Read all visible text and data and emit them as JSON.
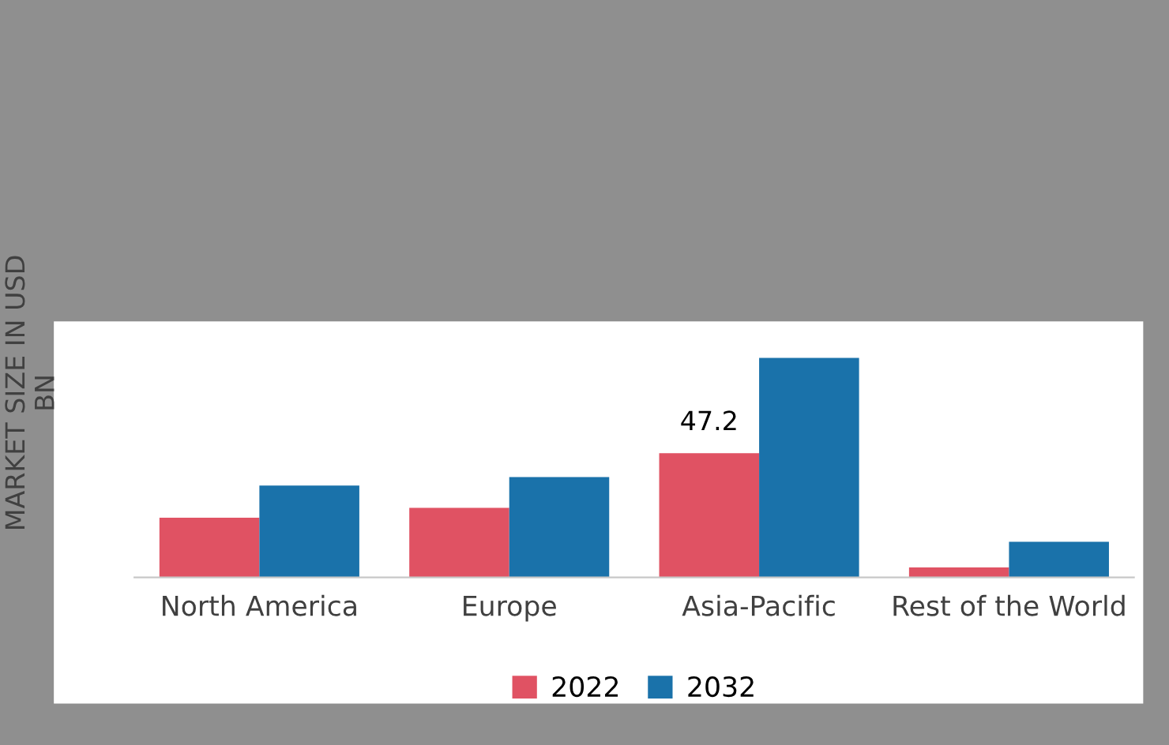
{
  "chart_data": {
    "type": "bar",
    "ylabel": "MARKET SIZE IN USD\nBN",
    "categories": [
      "North America",
      "Europe",
      "Asia-Pacific",
      "Rest of the World"
    ],
    "series": [
      {
        "name": "2022",
        "color": "#e05263",
        "values": [
          22.7,
          26.4,
          47.2,
          3.8
        ],
        "value_labels": [
          null,
          null,
          "47.2",
          null
        ]
      },
      {
        "name": "2032",
        "color": "#1a72aa",
        "values": [
          34.9,
          38.1,
          83.4,
          13.5
        ]
      }
    ],
    "legend": "bottom",
    "grid": false
  }
}
